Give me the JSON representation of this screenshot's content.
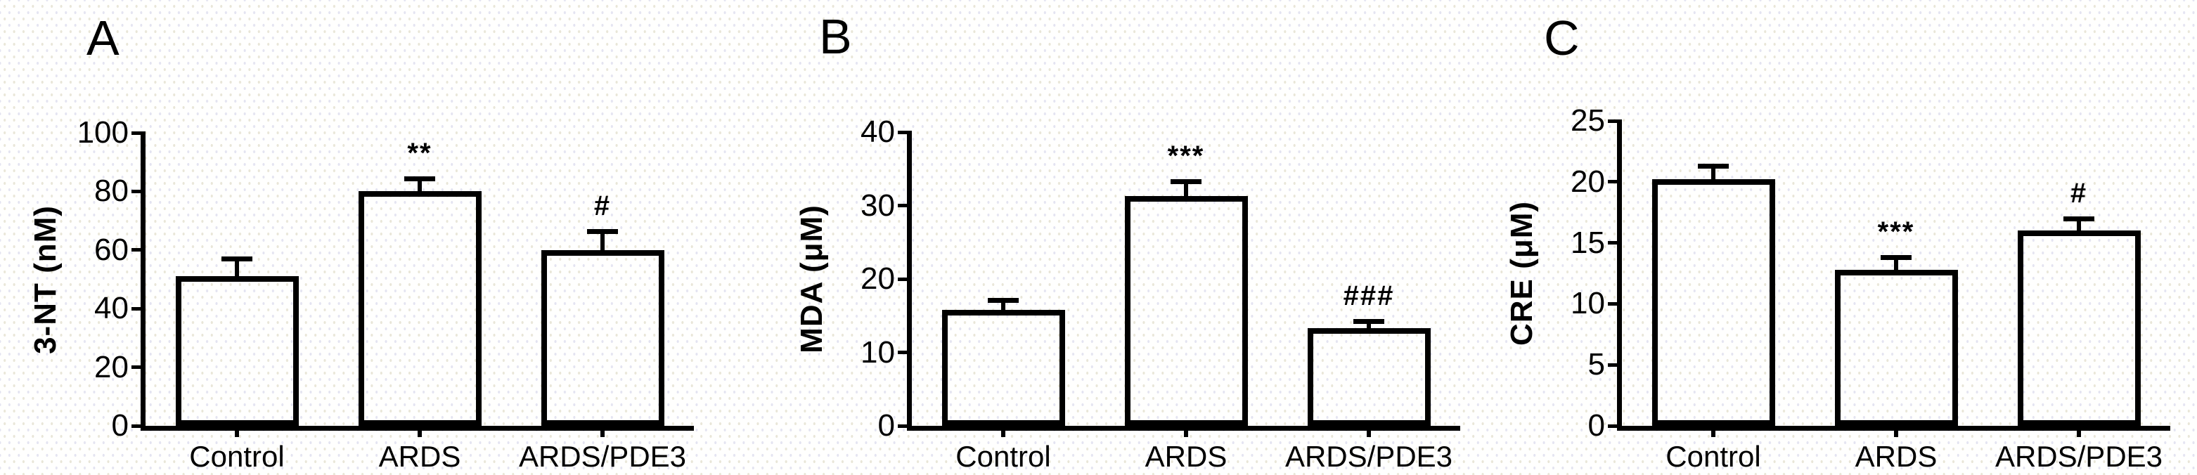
{
  "figure": {
    "background_color": "#fffffe",
    "ink_color": "#000000",
    "dot_pattern_colors": [
      "#e9e6d8",
      "#e4e4f1"
    ]
  },
  "chart_data": [
    {
      "type": "bar",
      "panel": "A",
      "title": "",
      "xlabel": "",
      "ylabel": "3-NT (nM)",
      "ylim": [
        0,
        100
      ],
      "yticks": [
        0,
        20,
        40,
        60,
        80,
        100
      ],
      "categories": [
        "Control",
        "ARDS",
        "ARDS/PDE3"
      ],
      "values": [
        51,
        80,
        60
      ],
      "errors": [
        6,
        4.5,
        6.5
      ],
      "significance": [
        "",
        "**",
        "#"
      ],
      "bar_fill": "transparent",
      "bar_border": "#000000",
      "grid": false,
      "legend": "none"
    },
    {
      "type": "bar",
      "panel": "B",
      "title": "",
      "xlabel": "",
      "ylabel": "MDA (μM)",
      "ylim": [
        0,
        40
      ],
      "yticks": [
        0,
        10,
        20,
        30,
        40
      ],
      "categories": [
        "Control",
        "ARDS",
        "ARDS/PDE3"
      ],
      "values": [
        15.8,
        31.3,
        13.3
      ],
      "errors": [
        1.3,
        2,
        1
      ],
      "significance": [
        "",
        "***",
        "###"
      ],
      "bar_fill": "transparent",
      "bar_border": "#000000",
      "grid": false,
      "legend": "none"
    },
    {
      "type": "bar",
      "panel": "C",
      "title": "",
      "xlabel": "",
      "ylabel": "CRE (μM)",
      "ylim": [
        0,
        25
      ],
      "yticks": [
        0,
        5,
        10,
        15,
        20,
        25
      ],
      "categories": [
        "Control",
        "ARDS",
        "ARDS/PDE3"
      ],
      "values": [
        20.2,
        12.8,
        16
      ],
      "errors": [
        1.1,
        1,
        1
      ],
      "significance": [
        "",
        "***",
        "#"
      ],
      "bar_fill": "transparent",
      "bar_border": "#000000",
      "grid": false,
      "legend": "none"
    }
  ]
}
